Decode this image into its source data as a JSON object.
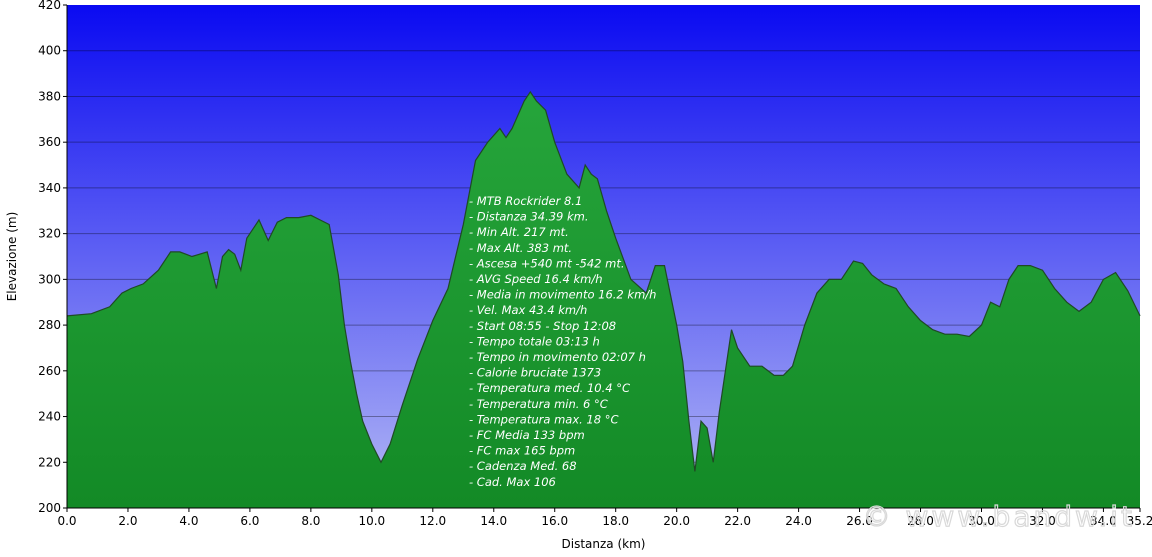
{
  "chart_data": {
    "type": "area",
    "xlabel": "Distanza  (km)",
    "ylabel": "Elevazione  (m)",
    "xlim": [
      0,
      35.2
    ],
    "ylim": [
      200,
      420
    ],
    "x_ticks": [
      "0.0",
      "2.0",
      "4.0",
      "6.0",
      "8.0",
      "10.0",
      "12.0",
      "14.0",
      "16.0",
      "18.0",
      "20.0",
      "22.0",
      "24.0",
      "26.0",
      "28.0",
      "30.0",
      "32.0",
      "34.0",
      "35.2"
    ],
    "y_ticks": [
      "200",
      "220",
      "240",
      "260",
      "280",
      "300",
      "320",
      "340",
      "360",
      "380",
      "400",
      "420"
    ],
    "grid": true,
    "colors": {
      "sky_top": "#0a0af2",
      "sky_bottom": "#b4b9f4",
      "fill_top": "#26a53b",
      "fill_bottom": "#138a26",
      "outline": "#1f4a24"
    },
    "series": [
      {
        "x": [
          0,
          0.8,
          1.4,
          1.8,
          2.1,
          2.5,
          3.0,
          3.4,
          3.7,
          4.1,
          4.6,
          4.9,
          5.1,
          5.3,
          5.5,
          5.7,
          5.9,
          6.1,
          6.3,
          6.6,
          6.9,
          7.2,
          7.6,
          8.0,
          8.3,
          8.6,
          8.9,
          9.1,
          9.3,
          9.5,
          9.7,
          10.0,
          10.3,
          10.6,
          11.0,
          11.5,
          12.0,
          12.5,
          13.0,
          13.4,
          13.8,
          14.2,
          14.4,
          14.6,
          15.0,
          15.2,
          15.4,
          15.7,
          16.0,
          16.4,
          16.8,
          17.0,
          17.2,
          17.4,
          17.7,
          18.0,
          18.5,
          19.0,
          19.3,
          19.6,
          20.0,
          20.2,
          20.4,
          20.6,
          20.8,
          21.0,
          21.2,
          21.4,
          21.6,
          21.8,
          22.0,
          22.4,
          22.8,
          23.2,
          23.5,
          23.8,
          24.2,
          24.6,
          25.0,
          25.4,
          25.8,
          26.1,
          26.4,
          26.8,
          27.2,
          27.6,
          28.0,
          28.4,
          28.8,
          29.2,
          29.6,
          30.0,
          30.3,
          30.6,
          30.9,
          31.2,
          31.6,
          32.0,
          32.4,
          32.8,
          33.2,
          33.6,
          34.0,
          34.4,
          34.8,
          35.2
        ],
        "y": [
          284,
          285,
          288,
          294,
          296,
          298,
          304,
          312,
          312,
          310,
          312,
          296,
          310,
          313,
          311,
          304,
          318,
          322,
          326,
          317,
          325,
          327,
          327,
          328,
          326,
          324,
          302,
          280,
          264,
          250,
          238,
          228,
          220,
          228,
          245,
          265,
          282,
          296,
          324,
          352,
          360,
          366,
          362,
          366,
          378,
          382,
          378,
          374,
          360,
          346,
          340,
          350,
          346,
          344,
          330,
          318,
          300,
          294,
          306,
          306,
          280,
          264,
          238,
          216,
          238,
          235,
          220,
          242,
          260,
          278,
          270,
          262,
          262,
          258,
          258,
          262,
          280,
          294,
          300,
          300,
          308,
          307,
          302,
          298,
          296,
          288,
          282,
          278,
          276,
          276,
          275,
          280,
          290,
          288,
          300,
          306,
          306,
          304,
          296,
          290,
          286,
          290,
          300,
          303,
          295,
          284
        ]
      }
    ],
    "info_lines": [
      "- MTB Rockrider 8.1",
      "- Distanza 34.39 km.",
      "- Min Alt. 217 mt.",
      "- Max Alt. 383 mt.",
      "- Ascesa +540 mt -542 mt.",
      "- AVG Speed 16.4 km/h",
      "- Media in movimento 16.2 km/h",
      "- Vel. Max 43.4 km/h",
      "- Start 08:55 - Stop 12:08",
      "- Tempo totale 03:13 h",
      "- Tempo in movimento 02:07 h",
      "- Calorie bruciate 1373",
      "- Temperatura med. 10.4 °C",
      "- Temperatura min. 6 °C",
      "- Temperatura max. 18 °C",
      "- FC Media 133 bpm",
      "- FC max 165 bpm",
      "- Cadenza Med. 68",
      "- Cad. Max 106"
    ],
    "watermark": "© www.bandw.it"
  }
}
